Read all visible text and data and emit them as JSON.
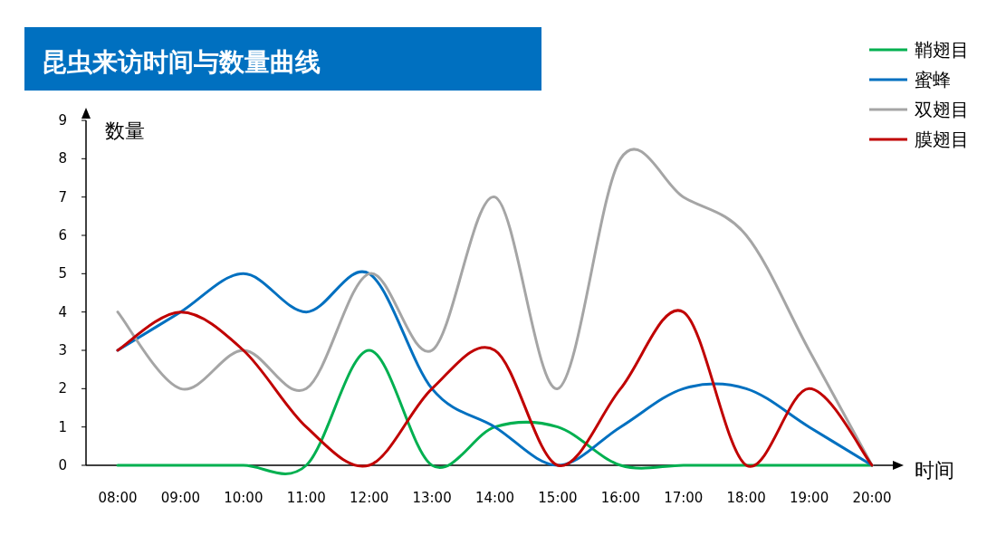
{
  "chart_data": {
    "type": "line",
    "title": "昆虫来访时间与数量曲线",
    "xlabel": "时间",
    "ylabel": "数量",
    "categories": [
      "08:00",
      "09:00",
      "10:00",
      "11:00",
      "12:00",
      "13:00",
      "14:00",
      "15:00",
      "16:00",
      "17:00",
      "18:00",
      "19:00",
      "20:00"
    ],
    "series": [
      {
        "name": "鞘翅目",
        "color": "#00b050",
        "values": [
          0,
          0,
          0,
          0,
          3,
          0,
          1,
          1,
          0,
          0,
          0,
          0,
          0
        ]
      },
      {
        "name": "蜜蜂",
        "color": "#0070c0",
        "values": [
          3,
          4,
          5,
          4,
          5,
          2,
          1,
          0,
          1,
          2,
          2,
          1,
          0
        ]
      },
      {
        "name": "双翅目",
        "color": "#a5a5a5",
        "values": [
          4,
          2,
          3,
          2,
          5,
          3,
          7,
          2,
          8,
          7,
          6,
          3,
          0
        ]
      },
      {
        "name": "膜翅目",
        "color": "#c00000",
        "values": [
          3,
          4,
          3,
          1,
          0,
          2,
          3,
          0,
          2,
          4,
          0,
          2,
          0
        ]
      }
    ],
    "ylim": [
      0,
      9
    ],
    "yticks": [
      0,
      1,
      2,
      3,
      4,
      5,
      6,
      7,
      8,
      9
    ],
    "legend": "top right"
  }
}
